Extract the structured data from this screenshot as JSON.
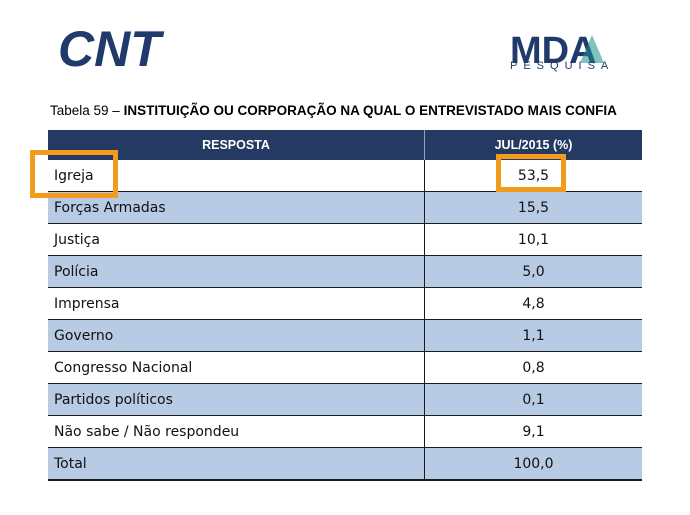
{
  "header": {
    "logo_left_text": "CNT",
    "logo_right_text": "MDA",
    "logo_right_subtitle": "PESQUISA"
  },
  "caption": {
    "prefix": "Tabela 59 – ",
    "title": "INSTITUIÇÃO OU CORPORAÇÃO NA QUAL O ENTREVISTADO MAIS CONFIA"
  },
  "table": {
    "columns": [
      "RESPOSTA",
      "JUL/2015 (%)"
    ],
    "rows": [
      {
        "label": "Igreja",
        "value": "53,5"
      },
      {
        "label": "Forças Armadas",
        "value": "15,5"
      },
      {
        "label": "Justiça",
        "value": "10,1"
      },
      {
        "label": "Polícia",
        "value": "5,0"
      },
      {
        "label": "Imprensa",
        "value": "4,8"
      },
      {
        "label": "Governo",
        "value": "1,1"
      },
      {
        "label": "Congresso Nacional",
        "value": "0,8"
      },
      {
        "label": "Partidos políticos",
        "value": "0,1"
      },
      {
        "label": "Não sabe / Não respondeu",
        "value": "9,1"
      },
      {
        "label": "Total",
        "value": "100,0"
      }
    ]
  },
  "colors": {
    "header_bg": "#243a63",
    "band_blue": "#b8cbe4",
    "highlight": "#f29b1c",
    "brand_dark": "#1f3a6b",
    "brand_teal": "#1a8f8a"
  }
}
